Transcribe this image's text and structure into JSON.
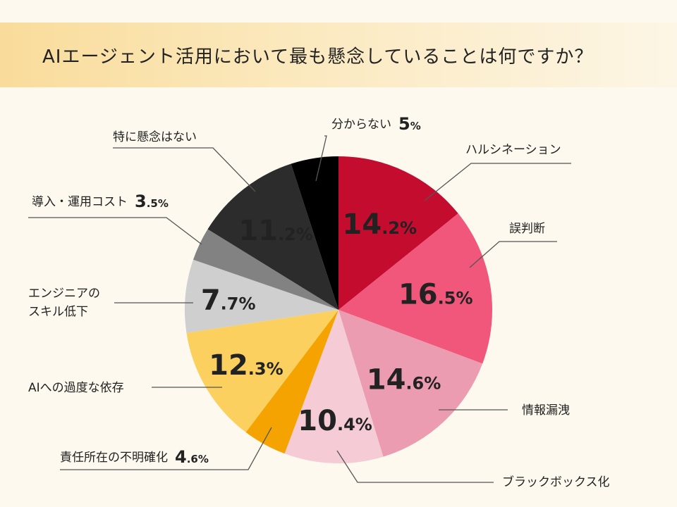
{
  "title": "AIエージェント活用において最も懸念していることは何ですか？",
  "colors": {
    "background": "#fdf9ef",
    "title_band": "#f9dc9b"
  },
  "chart_data": {
    "type": "pie",
    "title": "AIエージェント活用において最も懸念していることは何ですか？",
    "slices": [
      {
        "label": "ハルシネーション",
        "value": 14.2,
        "value_text": "14",
        "decimal_text": ".2%",
        "color": "#c40c2e",
        "text_color": "#ffffff"
      },
      {
        "label": "誤判断",
        "value": 16.5,
        "value_text": "16",
        "decimal_text": ".5%",
        "color": "#f0577a",
        "text_color": "#ffffff"
      },
      {
        "label": "情報漏洩",
        "value": 14.6,
        "value_text": "14",
        "decimal_text": ".6%",
        "color": "#ec9cb0",
        "text_color": "#ffffff"
      },
      {
        "label": "ブラックボックス化",
        "value": 10.4,
        "value_text": "10",
        "decimal_text": ".4%",
        "color": "#f5cbd6",
        "text_color": "#c40c2e"
      },
      {
        "label": "責任所在の不明確化",
        "value": 4.6,
        "value_text": "4",
        "decimal_text": ".6%",
        "color": "#f4a300",
        "text_color": "#222222"
      },
      {
        "label": "AIへの過度な依存",
        "value": 12.3,
        "value_text": "12",
        "decimal_text": ".3%",
        "color": "#fbd05e",
        "text_color": "#111111"
      },
      {
        "label_lines": [
          "エンジニアの",
          "スキル低下"
        ],
        "value": 7.7,
        "value_text": "7",
        "decimal_text": ".7%",
        "color": "#cfcfcf",
        "text_color": "#111111"
      },
      {
        "label": "導入・運用コスト",
        "value": 3.5,
        "value_text": "3",
        "decimal_text": ".5%",
        "color": "#828282",
        "text_color": "#222222"
      },
      {
        "label": "特に懸念はない",
        "value": 11.2,
        "value_text": "11",
        "decimal_text": ".2%",
        "color": "#2c2c2c",
        "text_color": "#ffffff"
      },
      {
        "label": "分からない",
        "value": 5,
        "value_text": "5",
        "decimal_text": "%",
        "color": "#000000",
        "text_color": "#222222"
      }
    ]
  }
}
